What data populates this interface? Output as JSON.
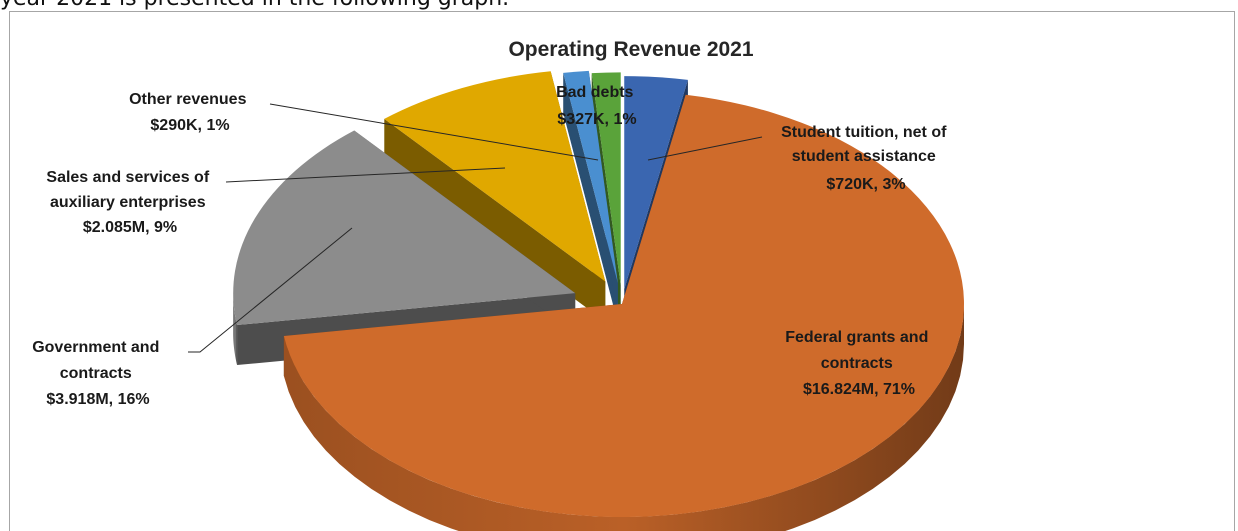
{
  "intro_text": "year 2021 is presented in the following graph.",
  "chart_data": {
    "type": "pie",
    "title": "Operating Revenue 2021",
    "three_d": true,
    "exploded": true,
    "slices": [
      {
        "name": "Student tuition, net of student assistance",
        "value_label": "$720K, 3%",
        "value": 0.72,
        "percent": 3,
        "color": "#3a66b0"
      },
      {
        "name": "Federal grants and contracts",
        "value_label": "$16.824M, 71%",
        "value": 16.824,
        "percent": 71,
        "color": "#cf6b2b"
      },
      {
        "name": "Government and contracts",
        "value_label": "$3.918M, 16%",
        "value": 3.918,
        "percent": 16,
        "color": "#8c8c8c"
      },
      {
        "name": "Sales and services of auxiliary enterprises",
        "value_label": "$2.085M, 9%",
        "value": 2.085,
        "percent": 9,
        "color": "#e0a800"
      },
      {
        "name": "Other revenues",
        "value_label": "$290K, 1%",
        "value": 0.29,
        "percent": 1,
        "color": "#4a8fd0"
      },
      {
        "name": "Bad debts",
        "value_label": "$327K, 1%",
        "value": 0.327,
        "percent": 1,
        "color": "#5aa33a"
      }
    ],
    "labels": {
      "tuition": [
        "Student tuition, net of",
        "student assistance",
        "$720K, 3%"
      ],
      "federal": [
        "Federal grants and",
        "contracts",
        "$16.824M, 71%"
      ],
      "government": [
        "Government and",
        "contracts",
        "$3.918M, 16%"
      ],
      "sales": [
        "Sales and services of",
        "auxiliary enterprises",
        "$2.085M, 9%"
      ],
      "other": [
        "Other revenues",
        "$290K, 1%"
      ],
      "baddebts": [
        "Bad debts",
        "$327K, 1%"
      ]
    }
  }
}
